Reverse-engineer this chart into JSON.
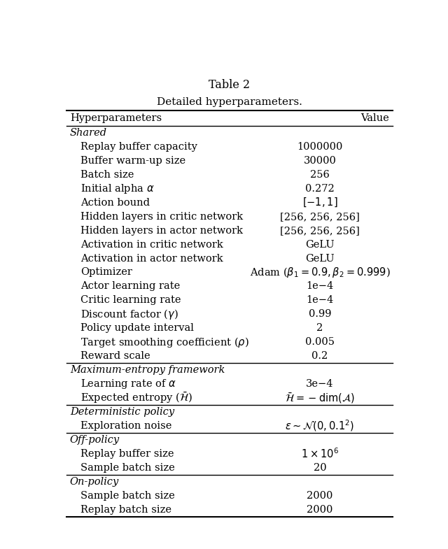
{
  "title_line1": "Table 2",
  "title_line2": "Detailed hyperparameters.",
  "col_headers": [
    "Hyperparameters",
    "Value"
  ],
  "sections": [
    {
      "section_name": "Shared",
      "rows": [
        [
          "Replay buffer capacity",
          "1000000"
        ],
        [
          "Buffer warm-up size",
          "30000"
        ],
        [
          "Batch size",
          "256"
        ],
        [
          "Initial alpha $\\alpha$",
          "0.272"
        ],
        [
          "Action bound",
          "$[-1, 1]$"
        ],
        [
          "Hidden layers in critic network",
          "[256, 256, 256]"
        ],
        [
          "Hidden layers in actor network",
          "[256, 256, 256]"
        ],
        [
          "Activation in critic network",
          "GeLU"
        ],
        [
          "Activation in actor network",
          "GeLU"
        ],
        [
          "Optimizer",
          "Adam ($\\beta_1 = 0.9, \\beta_2 = 0.999$)"
        ],
        [
          "Actor learning rate",
          "1e−4"
        ],
        [
          "Critic learning rate",
          "1e−4"
        ],
        [
          "Discount factor ($\\gamma$)",
          "0.99"
        ],
        [
          "Policy update interval",
          "2"
        ],
        [
          "Target smoothing coefficient ($\\rho$)",
          "0.005"
        ],
        [
          "Reward scale",
          "0.2"
        ]
      ]
    },
    {
      "section_name": "Maximum-entropy framework",
      "rows": [
        [
          "Learning rate of $\\alpha$",
          "3e−4"
        ],
        [
          "Expected entropy ($\\bar{\\mathcal{H}}$)",
          "$\\bar{\\mathcal{H}} = -\\dim(\\mathcal{A})$"
        ]
      ]
    },
    {
      "section_name": "Deterministic policy",
      "rows": [
        [
          "Exploration noise",
          "$\\epsilon \\sim \\mathcal{N}(0, 0.1^2)$"
        ]
      ]
    },
    {
      "section_name": "Off-policy",
      "rows": [
        [
          "Replay buffer size",
          "$1 \\times 10^6$"
        ],
        [
          "Sample batch size",
          "20"
        ]
      ]
    },
    {
      "section_name": "On-policy",
      "rows": [
        [
          "Sample batch size",
          "2000"
        ],
        [
          "Replay batch size",
          "2000"
        ]
      ]
    }
  ],
  "bg_color": "#ffffff",
  "text_color": "#000000",
  "font_size": 10.5,
  "title_font_size": 11.5
}
